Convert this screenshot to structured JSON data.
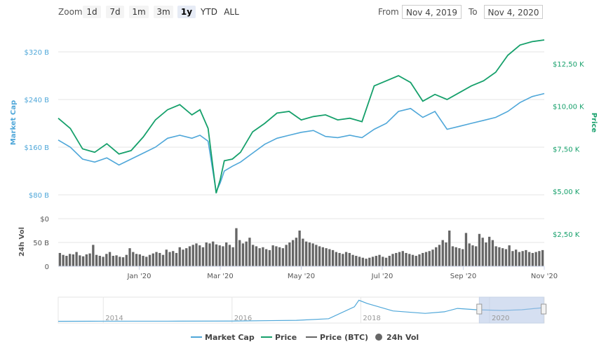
{
  "toolbar": {
    "zoom_label": "Zoom",
    "zoom_buttons": [
      "1d",
      "7d",
      "1m",
      "3m",
      "1y",
      "YTD",
      "ALL"
    ],
    "active_zoom": "1y",
    "from_label": "From",
    "from_value": "Nov 4, 2019",
    "to_label": "To",
    "to_value": "Nov 4, 2020"
  },
  "colors": {
    "market_cap": "#4fa7d9",
    "price": "#16a06b",
    "price_btc": "#666666",
    "volume": "#666666",
    "navigator_fill": "#dfe8f3"
  },
  "chart_data": {
    "type": "line",
    "axes": {
      "left_title": "Market Cap",
      "right_title": "Price",
      "left_ticks": [
        "$320 B",
        "$240 B",
        "$160 B",
        "$80 B"
      ],
      "left_tick_values": [
        320,
        240,
        160,
        80
      ],
      "right_ticks": [
        "$12,50 K",
        "$10,00 K",
        "$7,50 K",
        "$5,00 K",
        "$2,50 K"
      ],
      "right_tick_values": [
        12500,
        10000,
        7500,
        5000,
        2500
      ],
      "left_ylim": [
        40,
        360
      ],
      "right_ylim": [
        3400,
        14600
      ],
      "volume_title": "24h Vol",
      "volume_ticks": [
        "$0",
        "50 B",
        "0"
      ],
      "volume_tick_values": [
        100,
        50,
        0
      ],
      "volume_ylim": [
        0,
        100
      ],
      "x_ticks": [
        "Jan '20",
        "Mar '20",
        "May '20",
        "Jul '20",
        "Sep '20",
        "Nov '20"
      ],
      "x_tick_months": [
        2,
        4,
        6,
        8,
        10,
        12
      ],
      "xlim_months": [
        0,
        12
      ]
    },
    "series": [
      {
        "name": "Market Cap",
        "unit": "B",
        "x_months": [
          0,
          0.3,
          0.6,
          0.9,
          1.2,
          1.5,
          1.8,
          2.1,
          2.4,
          2.7,
          3.0,
          3.3,
          3.5,
          3.7,
          3.9,
          4.0,
          4.1,
          4.3,
          4.5,
          4.8,
          5.1,
          5.4,
          5.7,
          6.0,
          6.3,
          6.6,
          6.9,
          7.2,
          7.5,
          7.8,
          8.1,
          8.4,
          8.7,
          9.0,
          9.3,
          9.6,
          9.9,
          10.2,
          10.5,
          10.8,
          11.1,
          11.4,
          11.7,
          12.0
        ],
        "values": [
          172,
          160,
          140,
          135,
          142,
          130,
          140,
          150,
          160,
          175,
          180,
          175,
          180,
          170,
          85,
          100,
          120,
          128,
          135,
          150,
          165,
          175,
          180,
          185,
          188,
          178,
          176,
          180,
          176,
          190,
          200,
          220,
          225,
          210,
          220,
          190,
          195,
          200,
          205,
          210,
          220,
          235,
          245,
          250
        ]
      },
      {
        "name": "Price",
        "unit": "USD",
        "x_months": [
          0,
          0.3,
          0.6,
          0.9,
          1.2,
          1.5,
          1.8,
          2.1,
          2.4,
          2.7,
          3.0,
          3.3,
          3.5,
          3.7,
          3.9,
          4.0,
          4.1,
          4.3,
          4.5,
          4.8,
          5.1,
          5.4,
          5.7,
          6.0,
          6.3,
          6.6,
          6.9,
          7.2,
          7.5,
          7.8,
          8.1,
          8.4,
          8.7,
          9.0,
          9.3,
          9.6,
          9.9,
          10.2,
          10.5,
          10.8,
          11.1,
          11.4,
          11.7,
          12.0
        ],
        "values": [
          9300,
          8700,
          7500,
          7300,
          7800,
          7200,
          7400,
          8200,
          9200,
          9800,
          10100,
          9500,
          9800,
          8700,
          4900,
          5700,
          6800,
          6900,
          7300,
          8500,
          9000,
          9600,
          9700,
          9200,
          9400,
          9500,
          9200,
          9300,
          9100,
          11200,
          11500,
          11800,
          11400,
          10300,
          10700,
          10400,
          10800,
          11200,
          11500,
          12000,
          13000,
          13600,
          13800,
          13900
        ]
      },
      {
        "name": "Price (BTC)"
      },
      {
        "name": "24h Vol",
        "unit": "B",
        "x_months_start": 0,
        "x_months_end": 12,
        "values": [
          28,
          24,
          22,
          26,
          25,
          30,
          23,
          21,
          25,
          27,
          45,
          24,
          22,
          20,
          26,
          30,
          22,
          23,
          20,
          19,
          24,
          38,
          30,
          26,
          25,
          22,
          20,
          24,
          27,
          30,
          28,
          24,
          35,
          30,
          32,
          28,
          40,
          35,
          38,
          42,
          45,
          48,
          44,
          40,
          50,
          48,
          52,
          46,
          44,
          42,
          50,
          45,
          40,
          80,
          55,
          48,
          52,
          60,
          45,
          42,
          38,
          40,
          36,
          34,
          44,
          42,
          40,
          38,
          45,
          50,
          55,
          60,
          75,
          58,
          52,
          50,
          48,
          45,
          42,
          40,
          38,
          36,
          34,
          30,
          28,
          26,
          30,
          28,
          24,
          22,
          20,
          18,
          16,
          18,
          20,
          22,
          24,
          20,
          18,
          22,
          26,
          28,
          30,
          32,
          28,
          26,
          24,
          22,
          25,
          28,
          30,
          32,
          35,
          40,
          45,
          55,
          50,
          75,
          42,
          40,
          38,
          36,
          70,
          48,
          44,
          42,
          68,
          60,
          50,
          62,
          55,
          42,
          40,
          38,
          36,
          44,
          32,
          35,
          30,
          32,
          34,
          30,
          28,
          30,
          32,
          34
        ]
      }
    ],
    "navigator": {
      "ticks": [
        "2014",
        "2016",
        "2018",
        "2020"
      ],
      "tick_years": [
        2014,
        2016,
        2018,
        2020
      ],
      "xlim_years": [
        2013.3,
        2020.85
      ],
      "selected_years": [
        2019.84,
        2020.84
      ],
      "years": [
        2013.3,
        2014.0,
        2015.0,
        2016.0,
        2017.0,
        2017.5,
        2017.9,
        2017.97,
        2018.1,
        2018.5,
        2019.0,
        2019.3,
        2019.5,
        2019.8,
        2020.2,
        2020.5,
        2020.84
      ],
      "values": [
        2,
        3,
        3,
        4,
        8,
        18,
        90,
        130,
        110,
        65,
        50,
        60,
        80,
        72,
        68,
        72,
        85
      ],
      "ylim": [
        0,
        140
      ]
    },
    "legend": {
      "placement": "bottom-center",
      "items": [
        "Market Cap",
        "Price",
        "Price (BTC)",
        "24h Vol"
      ]
    }
  }
}
